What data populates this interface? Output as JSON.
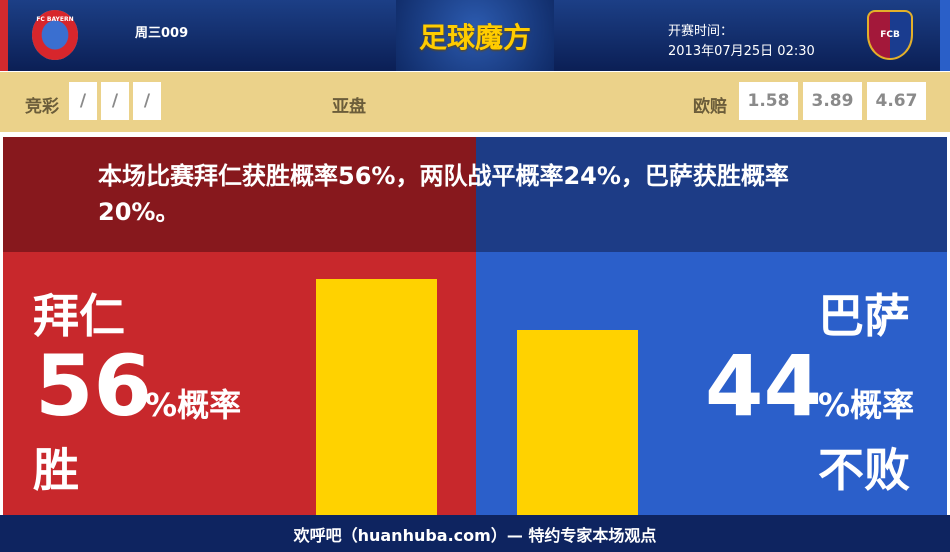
{
  "header": {
    "match_code": "周三009",
    "logo_text": "足球魔方",
    "time_label": "开赛时间：",
    "time_value": "2013年07月25日 02:30",
    "home_badge": "FC BAYERN",
    "away_badge": "FCB"
  },
  "odds": {
    "jingcai_label": "竞彩",
    "jingcai_values": [
      "/",
      "/",
      "/"
    ],
    "asian_label": "亚盘",
    "euro_label": "欧赔",
    "euro_values": [
      "1.58",
      "3.89",
      "4.67"
    ]
  },
  "summary": "本场比赛拜仁获胜概率56%，两队战平概率24%，巴萨获胜概率20%。",
  "home": {
    "team": "拜仁",
    "percent": "56",
    "unit": "%概率",
    "outcome": "胜",
    "value": 56
  },
  "away": {
    "team": "巴萨",
    "percent": "44",
    "unit": "%概率",
    "outcome": "不败",
    "value": 44
  },
  "footer": "欢呼吧（huanhuba.com）— 特约专家本场观点",
  "colors": {
    "home": "#c8282c",
    "away": "#2b5fca",
    "bar": "#ffd200"
  }
}
